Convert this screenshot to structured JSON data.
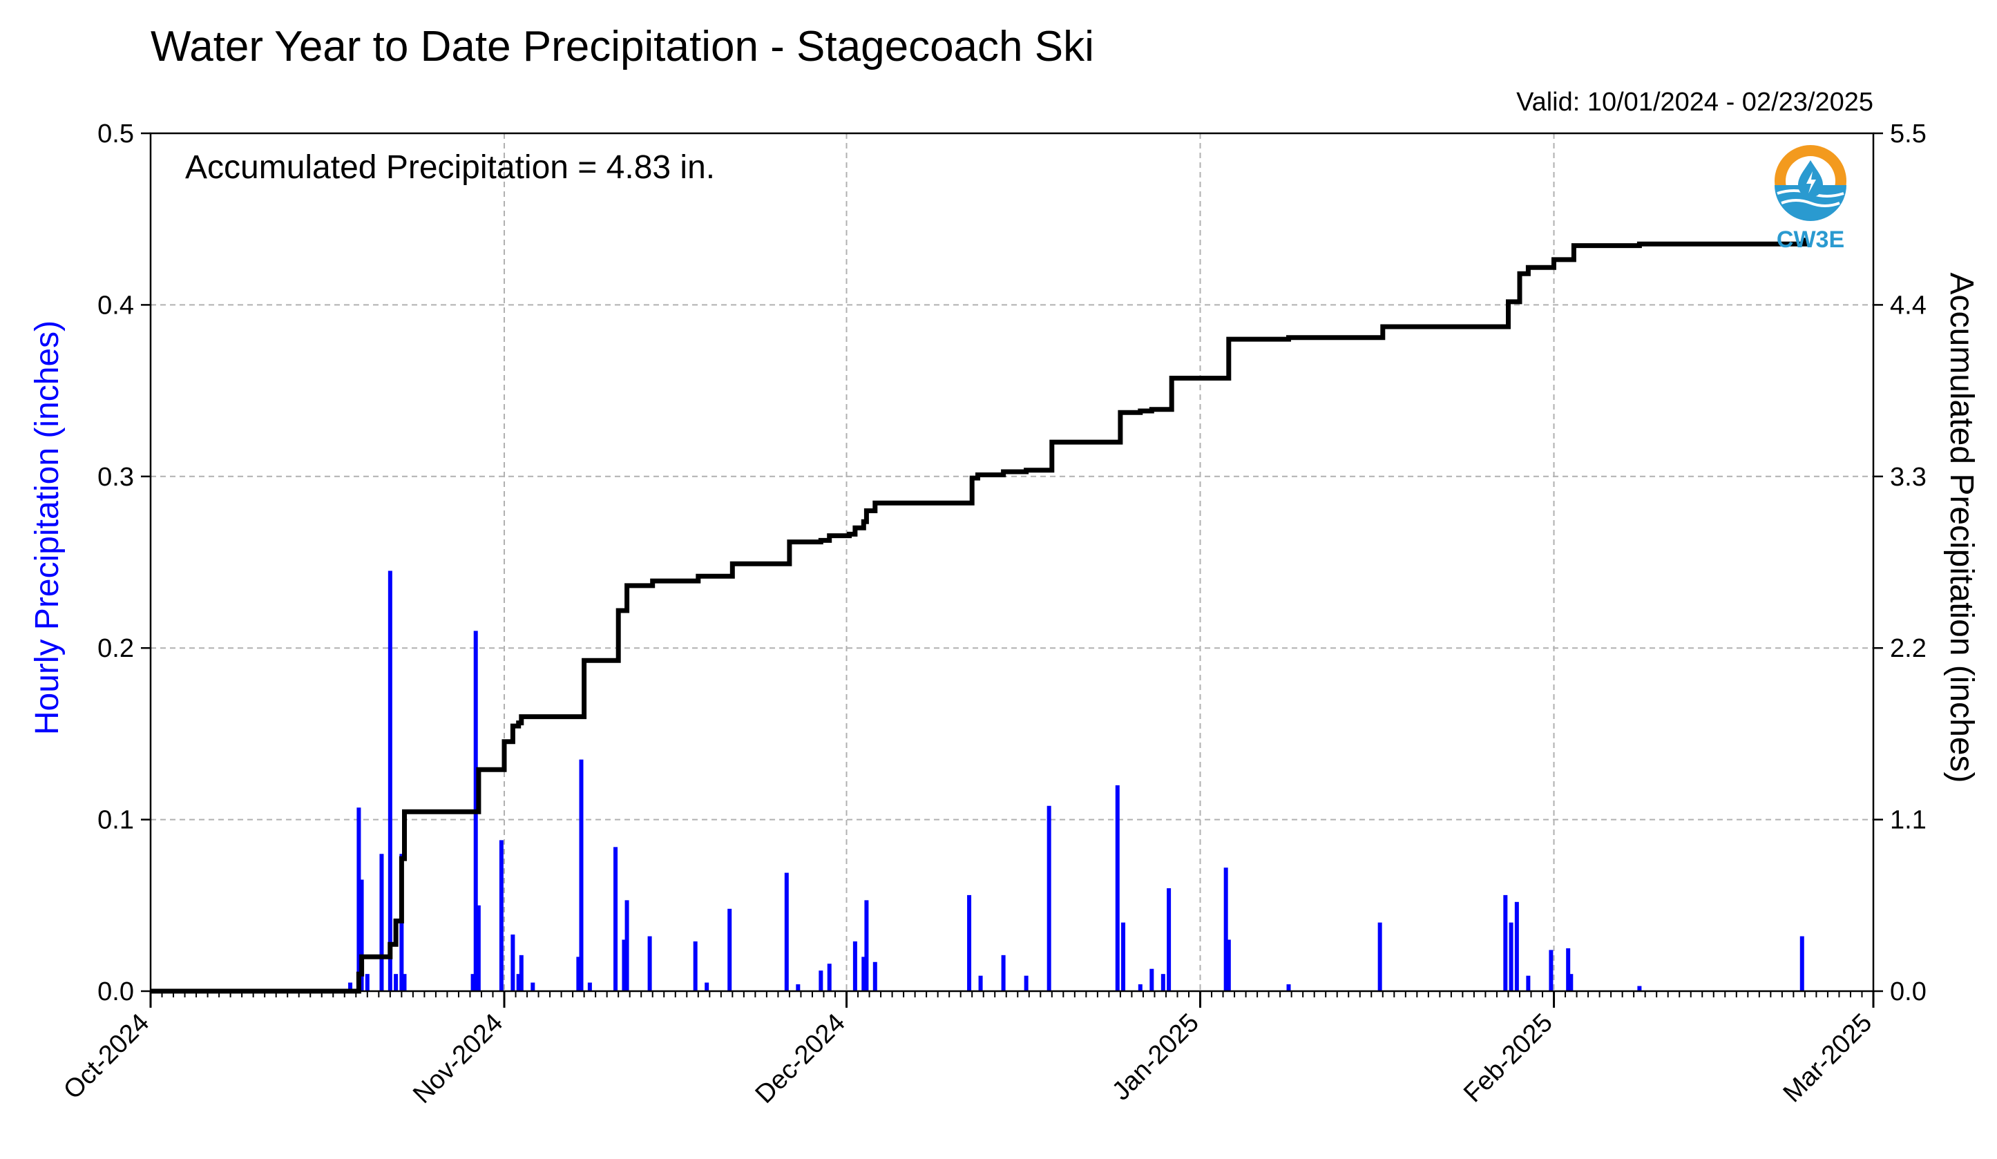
{
  "chart_data": {
    "type": "bar+line",
    "title": "Water Year to Date Precipitation - Stagecoach Ski",
    "valid_range": "Valid: 10/01/2024 - 02/23/2025",
    "annotation": "Accumulated Precipitation = 4.83 in.",
    "left_ylabel": "Hourly Precipitation (inches)",
    "right_ylabel": "Accumulated Precipitation (inches)",
    "left_ylim": [
      0,
      0.5
    ],
    "right_ylim": [
      0,
      5.5
    ],
    "left_yticks": [
      "0.0",
      "0.1",
      "0.2",
      "0.3",
      "0.4",
      "0.5"
    ],
    "right_yticks": [
      "0.0",
      "1.1",
      "2.2",
      "3.3",
      "4.4",
      "5.5"
    ],
    "x_range": [
      "2024-10-01",
      "2025-03-01"
    ],
    "x_ticks": [
      {
        "date": "2024-10-01",
        "label": "Oct-2024"
      },
      {
        "date": "2024-11-01",
        "label": "Nov-2024"
      },
      {
        "date": "2024-12-01",
        "label": "Dec-2024"
      },
      {
        "date": "2025-01-01",
        "label": "Jan-2025"
      },
      {
        "date": "2025-02-01",
        "label": "Feb-2025"
      },
      {
        "date": "2025-03-01",
        "label": "Mar-2025"
      }
    ],
    "grid": true,
    "series": [
      {
        "name": "Hourly Precipitation",
        "type": "bar",
        "color": "#0000ff",
        "points": [
          [
            "2024-10-18T12",
            0.005
          ],
          [
            "2024-10-19T06",
            0.107
          ],
          [
            "2024-10-19T12",
            0.065
          ],
          [
            "2024-10-20T00",
            0.01
          ],
          [
            "2024-10-21T06",
            0.08
          ],
          [
            "2024-10-22T00",
            0.245
          ],
          [
            "2024-10-22T12",
            0.01
          ],
          [
            "2024-10-23T00",
            0.08
          ],
          [
            "2024-10-23T06",
            0.01
          ],
          [
            "2024-10-29T06",
            0.01
          ],
          [
            "2024-10-29T12",
            0.21
          ],
          [
            "2024-10-29T18",
            0.05
          ],
          [
            "2024-10-31T18",
            0.088
          ],
          [
            "2024-11-01T18",
            0.033
          ],
          [
            "2024-11-02T06",
            0.01
          ],
          [
            "2024-11-02T12",
            0.021
          ],
          [
            "2024-11-03T12",
            0.005
          ],
          [
            "2024-11-07T12",
            0.02
          ],
          [
            "2024-11-07T18",
            0.135
          ],
          [
            "2024-11-08T12",
            0.005
          ],
          [
            "2024-11-10T18",
            0.084
          ],
          [
            "2024-11-11T12",
            0.03
          ],
          [
            "2024-11-11T18",
            0.053
          ],
          [
            "2024-11-13T18",
            0.032
          ],
          [
            "2024-11-17T18",
            0.029
          ],
          [
            "2024-11-18T18",
            0.005
          ],
          [
            "2024-11-20T18",
            0.048
          ],
          [
            "2024-11-25T18",
            0.069
          ],
          [
            "2024-11-26T18",
            0.004
          ],
          [
            "2024-11-28T18",
            0.012
          ],
          [
            "2024-11-29T12",
            0.016
          ],
          [
            "2024-12-01T18",
            0.029
          ],
          [
            "2024-12-02T12",
            0.02
          ],
          [
            "2024-12-02T18",
            0.053
          ],
          [
            "2024-12-03T12",
            0.017
          ],
          [
            "2024-12-11T18",
            0.056
          ],
          [
            "2024-12-12T18",
            0.009
          ],
          [
            "2024-12-14T18",
            0.021
          ],
          [
            "2024-12-16T18",
            0.009
          ],
          [
            "2024-12-18T18",
            0.108
          ],
          [
            "2024-12-24T18",
            0.12
          ],
          [
            "2024-12-25T06",
            0.04
          ],
          [
            "2024-12-26T18",
            0.004
          ],
          [
            "2024-12-27T18",
            0.013
          ],
          [
            "2024-12-28T18",
            0.01
          ],
          [
            "2024-12-29T06",
            0.06
          ],
          [
            "2025-01-03T06",
            0.072
          ],
          [
            "2025-01-03T12",
            0.03
          ],
          [
            "2025-01-08T18",
            0.004
          ],
          [
            "2025-01-16T18",
            0.04
          ],
          [
            "2025-01-27T18",
            0.056
          ],
          [
            "2025-01-28T06",
            0.04
          ],
          [
            "2025-01-28T18",
            0.052
          ],
          [
            "2025-01-29T18",
            0.009
          ],
          [
            "2025-01-31T18",
            0.024
          ],
          [
            "2025-02-02T06",
            0.025
          ],
          [
            "2025-02-02T12",
            0.01
          ],
          [
            "2025-02-08T12",
            0.003
          ],
          [
            "2025-02-22T18",
            0.032
          ]
        ]
      },
      {
        "name": "Accumulated Precipitation",
        "type": "step-line",
        "color": "#000000",
        "points": [
          [
            "2024-10-01",
            0.0
          ],
          [
            "2024-10-19",
            0.0
          ],
          [
            "2024-10-19T06",
            0.11
          ],
          [
            "2024-10-19T12",
            0.22
          ],
          [
            "2024-10-21T06",
            0.22
          ],
          [
            "2024-10-22T00",
            0.3
          ],
          [
            "2024-10-22T12",
            0.45
          ],
          [
            "2024-10-23T00",
            0.85
          ],
          [
            "2024-10-23T06",
            1.15
          ],
          [
            "2024-10-29T12",
            1.15
          ],
          [
            "2024-10-29T18",
            1.42
          ],
          [
            "2024-10-31T18",
            1.42
          ],
          [
            "2024-11-01T00",
            1.6
          ],
          [
            "2024-11-01T12",
            1.6
          ],
          [
            "2024-11-01T18",
            1.7
          ],
          [
            "2024-11-02T06",
            1.72
          ],
          [
            "2024-11-02T12",
            1.76
          ],
          [
            "2024-11-07T18",
            1.76
          ],
          [
            "2024-11-08T00",
            2.12
          ],
          [
            "2024-11-10T18",
            2.12
          ],
          [
            "2024-11-11T00",
            2.44
          ],
          [
            "2024-11-11T12",
            2.44
          ],
          [
            "2024-11-11T18",
            2.6
          ],
          [
            "2024-11-13T18",
            2.6
          ],
          [
            "2024-11-14T00",
            2.63
          ],
          [
            "2024-11-17T18",
            2.63
          ],
          [
            "2024-11-18T00",
            2.66
          ],
          [
            "2024-11-20T18",
            2.66
          ],
          [
            "2024-11-21T00",
            2.74
          ],
          [
            "2024-11-25T18",
            2.74
          ],
          [
            "2024-11-26T00",
            2.88
          ],
          [
            "2024-11-28T18",
            2.89
          ],
          [
            "2024-11-29T12",
            2.92
          ],
          [
            "2024-12-01T06",
            2.93
          ],
          [
            "2024-12-01T18",
            2.97
          ],
          [
            "2024-12-02T12",
            3.01
          ],
          [
            "2024-12-02T18",
            3.08
          ],
          [
            "2024-12-03T12",
            3.13
          ],
          [
            "2024-12-11T18",
            3.13
          ],
          [
            "2024-12-12T00",
            3.29
          ],
          [
            "2024-12-12T12",
            3.31
          ],
          [
            "2024-12-14T18",
            3.33
          ],
          [
            "2024-12-16T18",
            3.34
          ],
          [
            "2024-12-18T18",
            3.34
          ],
          [
            "2024-12-19T00",
            3.52
          ],
          [
            "2024-12-24T18",
            3.52
          ],
          [
            "2024-12-25T00",
            3.71
          ],
          [
            "2024-12-26T18",
            3.72
          ],
          [
            "2024-12-27T18",
            3.73
          ],
          [
            "2024-12-29T06",
            3.73
          ],
          [
            "2024-12-29T12",
            3.93
          ],
          [
            "2025-01-03T06",
            3.93
          ],
          [
            "2025-01-03T12",
            4.18
          ],
          [
            "2025-01-08T18",
            4.19
          ],
          [
            "2025-01-16T18",
            4.19
          ],
          [
            "2025-01-17T00",
            4.26
          ],
          [
            "2025-01-27T18",
            4.26
          ],
          [
            "2025-01-28T00",
            4.42
          ],
          [
            "2025-01-28T18",
            4.42
          ],
          [
            "2025-01-29T00",
            4.6
          ],
          [
            "2025-01-29T18",
            4.64
          ],
          [
            "2025-01-31T18",
            4.64
          ],
          [
            "2025-02-01T00",
            4.69
          ],
          [
            "2025-02-02T12",
            4.69
          ],
          [
            "2025-02-02T18",
            4.78
          ],
          [
            "2025-02-08T12",
            4.79
          ],
          [
            "2025-02-22T18",
            4.79
          ],
          [
            "2025-02-23T00",
            4.83
          ]
        ]
      }
    ]
  },
  "logo": {
    "text": "CW3E",
    "colors": {
      "ring": "#f39a1e",
      "inner": "#ffffff",
      "water": "#2a9ad0",
      "drop": "#2a9ad0"
    }
  },
  "colors": {
    "bar": "#0000ff",
    "line": "#000000",
    "grid": "#b0b0b0",
    "left_axis_label": "#0000ff"
  }
}
